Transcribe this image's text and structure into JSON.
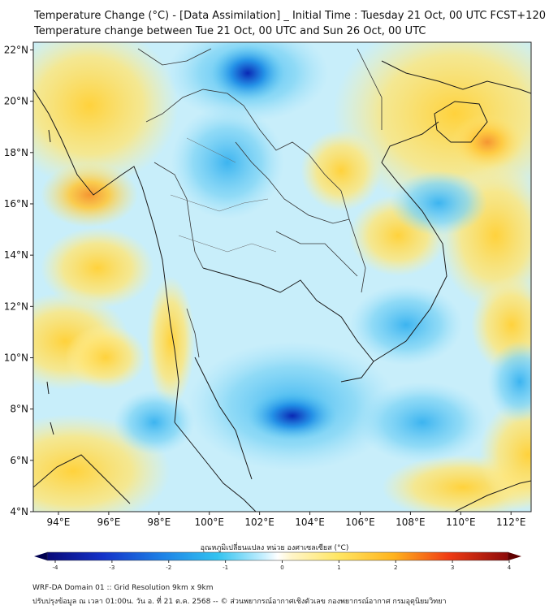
{
  "header": {
    "title_line1": "Temperature Change (°C) - [Data Assimilation] _ Initial Time : Tuesday 21 Oct, 00 UTC FCST+120",
    "title_line2": "Temperature change between Tue 21 Oct, 00 UTC and Sun 26 Oct, 00 UTC"
  },
  "map": {
    "lat_labels": [
      "22°N",
      "20°N",
      "18°N",
      "16°N",
      "14°N",
      "12°N",
      "10°N",
      "8°N",
      "6°N",
      "4°N"
    ],
    "lon_labels": [
      "94°E",
      "96°E",
      "98°E",
      "100°E",
      "102°E",
      "104°E",
      "106°E",
      "108°E",
      "110°E",
      "112°E"
    ],
    "lat_values": [
      22,
      20,
      18,
      16,
      14,
      12,
      10,
      8,
      6,
      4
    ],
    "lon_values": [
      94,
      96,
      98,
      100,
      102,
      104,
      106,
      108,
      110,
      112
    ],
    "lat_range": [
      4,
      22.3
    ],
    "lon_range": [
      93,
      112.8
    ]
  },
  "colorbar": {
    "label": "อุณหภูมิเปลี่ยนแปลง หน่วย องศาเซลเซียส (°C)",
    "ticks": [
      "-4",
      "-3",
      "-2",
      "-1",
      "0",
      "1",
      "2",
      "3",
      "4"
    ],
    "tick_values": [
      -4,
      -3,
      -2,
      -1,
      0,
      1,
      2,
      3,
      4
    ],
    "range": [
      -4,
      4
    ]
  },
  "footer": {
    "line1": "WRF-DA Domain 01 :: Grid Resolution 9km x 9km",
    "line2": "ปรับปรุงข้อมูล ณ เวลา 01:00น. วัน อ. ที่ 21 ต.ค. 2568 -- © ส่วนพยากรณ์อากาศเชิงตัวเลข กองพยากรณ์อากาศ กรมอุตุนิยมวิทยา"
  },
  "colors": {
    "neg_strong": "#0a28b4",
    "neg_mid": "#1e8ce6",
    "neg_light": "#5ac8f0",
    "neutral": "#dcf5ff",
    "pos_light": "#ffeb8c",
    "pos_mid": "#ffd23c",
    "pos_strong": "#f5a046",
    "coast": "#1a1a1a",
    "border": "#333333"
  }
}
